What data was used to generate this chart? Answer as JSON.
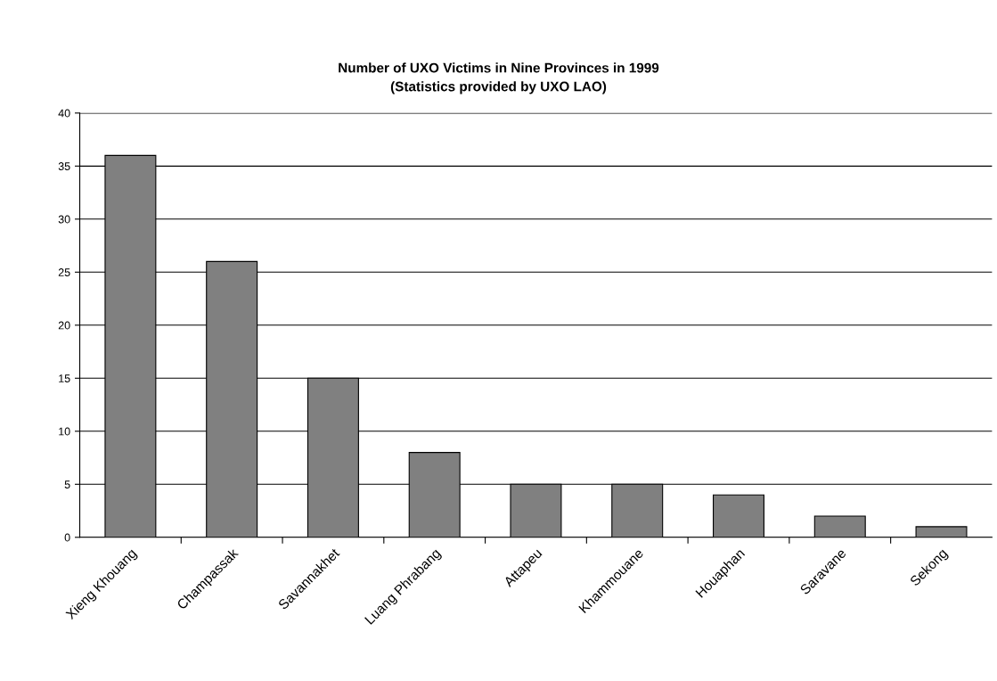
{
  "chart_data": {
    "type": "bar",
    "title": "Number of UXO Victims in Nine Provinces in 1999\n(Statistics provided by UXO LAO)",
    "categories": [
      "Xieng Khouang",
      "Champassak",
      "Savannakhet",
      "Luang Phrabang",
      "Attapeu",
      "Khammouane",
      "Houaphan",
      "Saravane",
      "Sekong"
    ],
    "values": [
      36,
      26,
      15,
      8,
      5,
      5,
      4,
      2,
      1
    ],
    "color": "#808080",
    "ylim": [
      0,
      40
    ],
    "yticks": [
      0,
      5,
      10,
      15,
      20,
      25,
      30,
      35,
      40
    ],
    "grid": "y",
    "legend": false
  }
}
